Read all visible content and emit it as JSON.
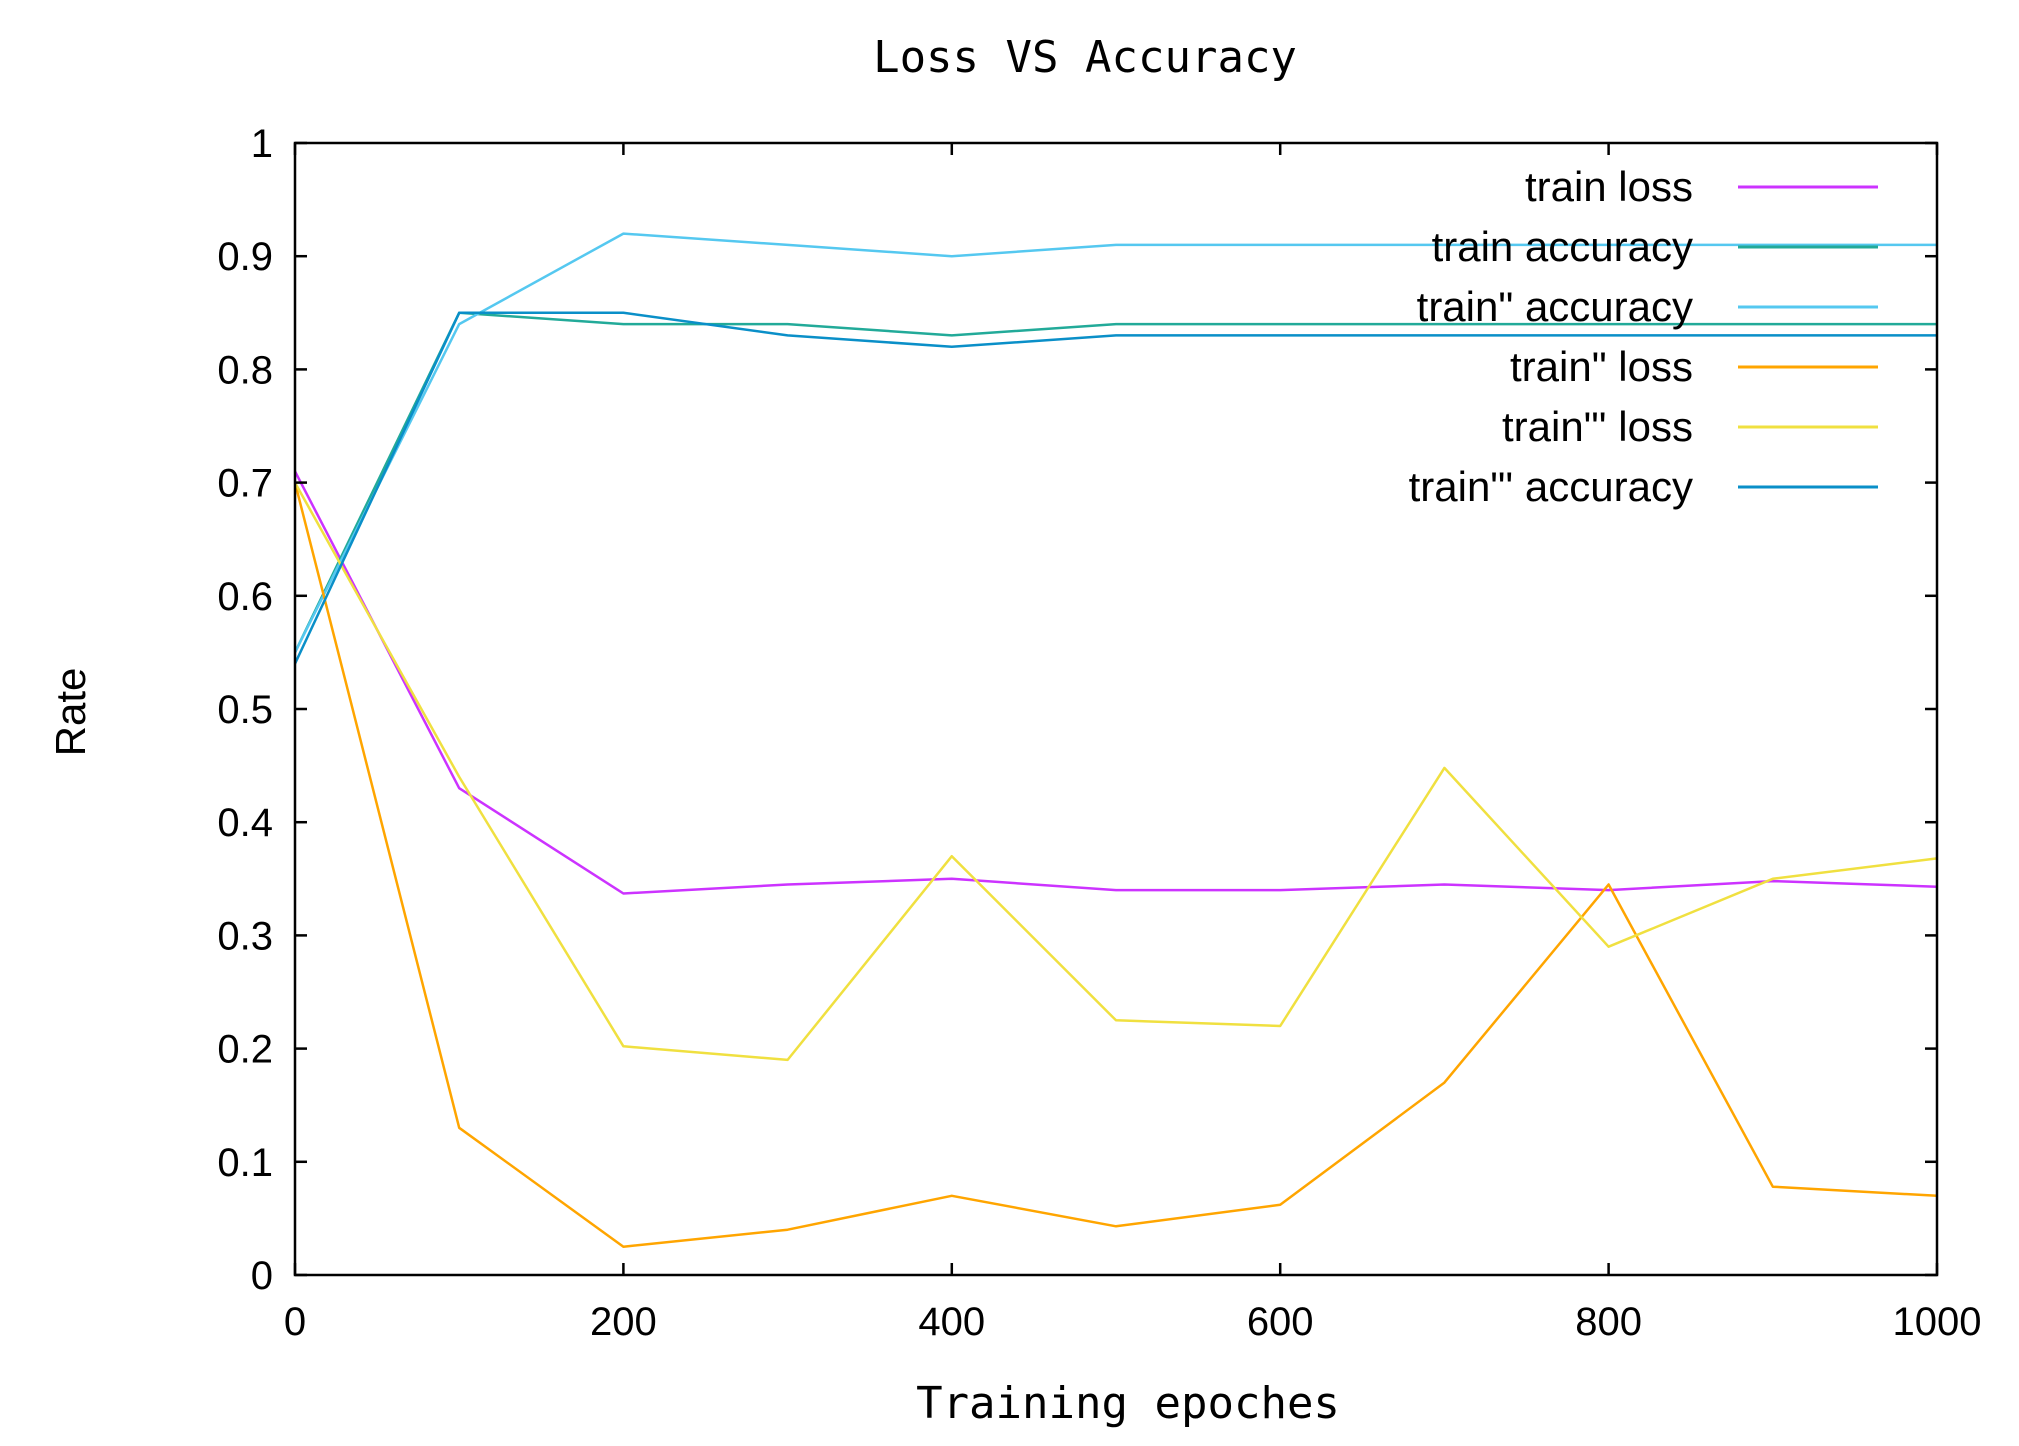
{
  "chart_data": {
    "type": "line",
    "title": "Loss VS Accuracy",
    "xlabel": "Training epoches",
    "ylabel": "Rate",
    "xlim": [
      0,
      1000
    ],
    "ylim": [
      0,
      1
    ],
    "xticks": [
      0,
      200,
      400,
      600,
      800,
      1000
    ],
    "yticks": [
      0,
      0.1,
      0.2,
      0.3,
      0.4,
      0.5,
      0.6,
      0.7,
      0.8,
      0.9,
      1
    ],
    "ytick_labels": [
      "0",
      "0.1",
      "0.2",
      "0.3",
      "0.4",
      "0.5",
      "0.6",
      "0.7",
      "0.8",
      "0.9",
      "1"
    ],
    "grid": false,
    "legend_position": "top-right",
    "x": [
      0,
      100,
      200,
      300,
      400,
      500,
      600,
      700,
      800,
      900,
      1000
    ],
    "series": [
      {
        "name": "train loss",
        "color": "#cc33ff",
        "values": [
          0.71,
          0.43,
          0.337,
          0.345,
          0.35,
          0.34,
          0.34,
          0.345,
          0.34,
          0.348,
          0.343
        ]
      },
      {
        "name": "train accuracy",
        "color": "#22aa99",
        "values": [
          0.55,
          0.85,
          0.84,
          0.84,
          0.83,
          0.84,
          0.84,
          0.84,
          0.84,
          0.84,
          0.84
        ]
      },
      {
        "name": "train'' accuracy",
        "color": "#55c8f0",
        "values": [
          0.55,
          0.84,
          0.92,
          0.91,
          0.9,
          0.91,
          0.91,
          0.91,
          0.91,
          0.91,
          0.91
        ]
      },
      {
        "name": "train'' loss",
        "color": "#ffa500",
        "values": [
          0.7,
          0.13,
          0.025,
          0.04,
          0.07,
          0.043,
          0.062,
          0.17,
          0.345,
          0.078,
          0.07
        ]
      },
      {
        "name": "train''' loss",
        "color": "#f0e040",
        "values": [
          0.7,
          0.44,
          0.202,
          0.19,
          0.37,
          0.225,
          0.22,
          0.448,
          0.29,
          0.35,
          0.368
        ]
      },
      {
        "name": "train''' accuracy",
        "color": "#0a8fc8",
        "values": [
          0.54,
          0.85,
          0.85,
          0.83,
          0.82,
          0.83,
          0.83,
          0.83,
          0.83,
          0.83,
          0.83
        ]
      }
    ]
  },
  "legend": {
    "labels": [
      "train loss",
      "train accuracy",
      "train\" accuracy",
      "train\" loss",
      "train\"' loss",
      "train\"' accuracy"
    ]
  }
}
